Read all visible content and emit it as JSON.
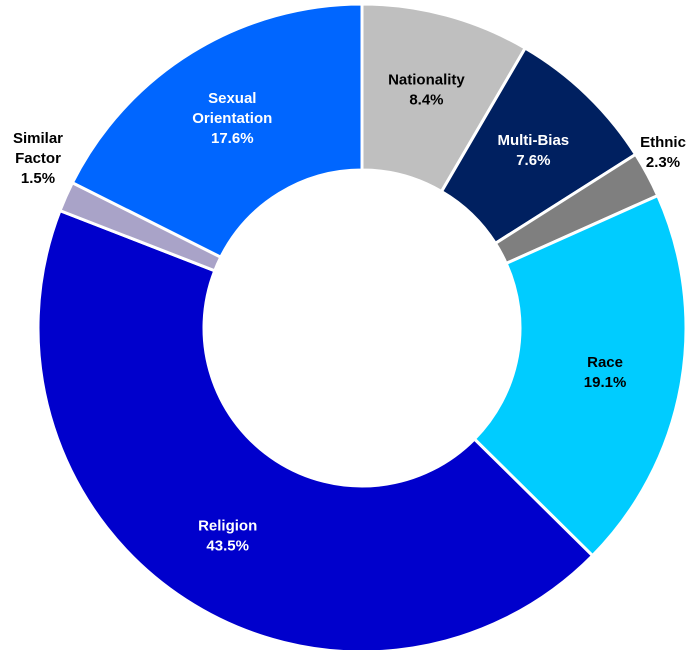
{
  "chart_data": {
    "type": "pie",
    "variant": "donut",
    "title": "",
    "legend": "none",
    "slices": [
      {
        "label": [
          "Nationality"
        ],
        "value_label": "8.4%",
        "value": 8.4,
        "color": "#bfbfbf",
        "label_color": "#000000",
        "label_placement": "inside"
      },
      {
        "label": [
          "Multi-Bias"
        ],
        "value_label": "7.6%",
        "value": 7.6,
        "color": "#002060",
        "label_color": "#ffffff",
        "label_placement": "inside"
      },
      {
        "label": [
          "Ethnic"
        ],
        "value_label": "2.3%",
        "value": 2.3,
        "color": "#7f7f7f",
        "label_color": "#000000",
        "label_placement": "outside"
      },
      {
        "label": [
          "Race"
        ],
        "value_label": "19.1%",
        "value": 19.1,
        "color": "#00ccff",
        "label_color": "#000000",
        "label_placement": "inside"
      },
      {
        "label": [
          "Religion"
        ],
        "value_label": "43.5%",
        "value": 43.5,
        "color": "#0000cc",
        "label_color": "#ffffff",
        "label_placement": "inside"
      },
      {
        "label": [
          "Similar",
          "Factor"
        ],
        "value_label": "1.5%",
        "value": 1.5,
        "color": "#a9a3c8",
        "label_color": "#000000",
        "label_placement": "outside"
      },
      {
        "label": [
          "Sexual",
          "Orientation"
        ],
        "value_label": "17.6%",
        "value": 17.6,
        "color": "#0066ff",
        "label_color": "#ffffff",
        "label_placement": "inside"
      }
    ]
  }
}
